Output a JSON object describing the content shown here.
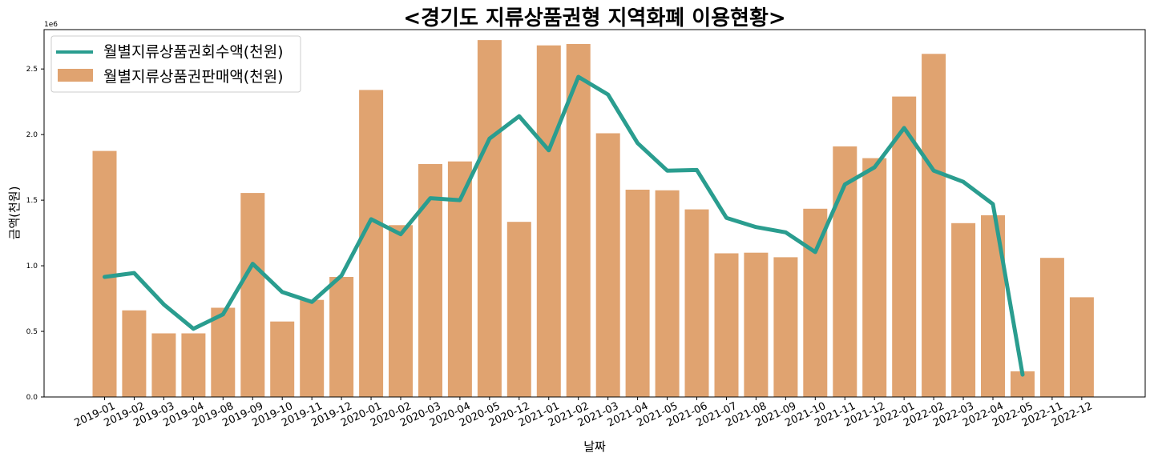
{
  "chart_data": {
    "type": "bar+line",
    "title": "<경기도 지류상품권형 지역화폐 이용현황>",
    "xlabel": "날짜",
    "ylabel": "금액(천원)",
    "y_scale_label": "1e6",
    "ylim": [
      0,
      2800000
    ],
    "yticks": [
      0,
      500000,
      1000000,
      1500000,
      2000000,
      2500000
    ],
    "ytick_labels": [
      "0.0",
      "0.5",
      "1.0",
      "1.5",
      "2.0",
      "2.5"
    ],
    "categories": [
      "2019-01",
      "2019-02",
      "2019-03",
      "2019-04",
      "2019-08",
      "2019-09",
      "2019-10",
      "2019-11",
      "2019-12",
      "2020-01",
      "2020-02",
      "2020-03",
      "2020-04",
      "2020-05",
      "2020-12",
      "2021-01",
      "2021-02",
      "2021-03",
      "2021-04",
      "2021-05",
      "2021-06",
      "2021-07",
      "2021-08",
      "2021-09",
      "2021-10",
      "2021-11",
      "2021-12",
      "2022-01",
      "2022-02",
      "2022-03",
      "2022-04",
      "2022-05",
      "2022-11",
      "2022-12"
    ],
    "series": [
      {
        "name": "월별지류상품권판매액(천원)",
        "kind": "bar",
        "color": "#E0A370",
        "values": [
          1875000,
          660000,
          485000,
          485000,
          680000,
          1555000,
          575000,
          740000,
          915000,
          2340000,
          1310000,
          1775000,
          1795000,
          2720000,
          1335000,
          2680000,
          2690000,
          2010000,
          1580000,
          1575000,
          1430000,
          1095000,
          1100000,
          1065000,
          1435000,
          1910000,
          1820000,
          2290000,
          2615000,
          1325000,
          1385000,
          195000,
          1060000,
          760000
        ]
      },
      {
        "name": "월별지류상품권회수액(천원)",
        "kind": "line",
        "color": "#2A9D8F",
        "values": [
          915000,
          945000,
          705000,
          520000,
          630000,
          1015000,
          800000,
          725000,
          925000,
          1355000,
          1240000,
          1515000,
          1500000,
          1970000,
          2140000,
          1880000,
          2440000,
          2305000,
          1935000,
          1725000,
          1730000,
          1365000,
          1295000,
          1255000,
          1105000,
          1620000,
          1750000,
          2050000,
          1725000,
          1640000,
          1470000,
          170000,
          null,
          null
        ]
      }
    ],
    "legend_position": "upper-left"
  }
}
